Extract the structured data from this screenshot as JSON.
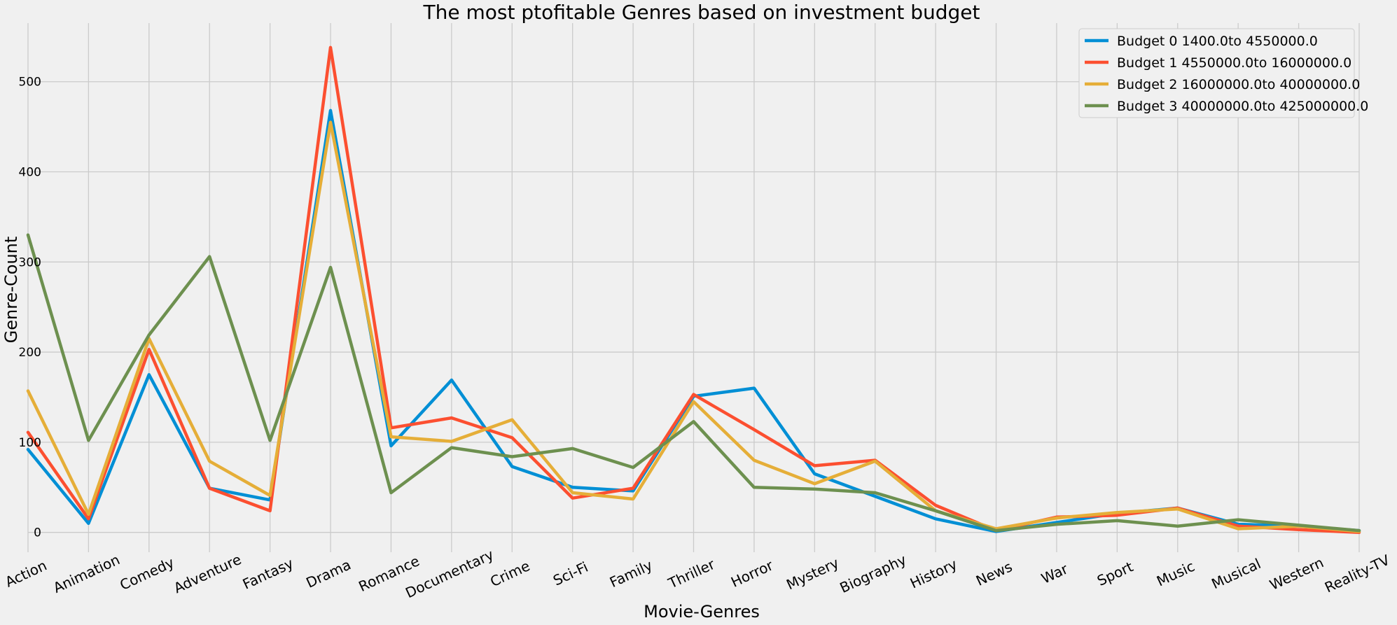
{
  "chart_data": {
    "type": "line",
    "title": "The most ptofitable Genres based on investment budget",
    "xlabel": "Movie-Genres",
    "ylabel": "Genre-Count",
    "categories": [
      "Action",
      "Animation",
      "Comedy",
      "Adventure",
      "Fantasy",
      "Drama",
      "Romance",
      "Documentary",
      "Crime",
      "Sci-Fi",
      "Family",
      "Thriller",
      "Horror",
      "Mystery",
      "Biography",
      "History",
      "News",
      "War",
      "Sport",
      "Music",
      "Musical",
      "Western",
      "Reality-TV"
    ],
    "yticks": [
      0,
      100,
      200,
      300,
      400,
      500
    ],
    "ylim": [
      -22,
      565
    ],
    "grid": true,
    "legend_position": "top-right",
    "series": [
      {
        "name": "Budget  0  1400.0to 4550000.0",
        "color": "#008fd5",
        "values": [
          92,
          10,
          175,
          49,
          36,
          468,
          96,
          169,
          73,
          50,
          46,
          151,
          160,
          65,
          40,
          15,
          1,
          11,
          21,
          27,
          9,
          7,
          2
        ]
      },
      {
        "name": "Budget  1  4550000.0to 16000000.0",
        "color": "#fc4f30",
        "values": [
          111,
          15,
          203,
          49,
          24,
          538,
          116,
          127,
          105,
          38,
          49,
          153,
          114,
          74,
          80,
          30,
          2,
          17,
          19,
          27,
          7,
          3,
          0
        ]
      },
      {
        "name": "Budget  2  16000000.0to 40000000.0",
        "color": "#e5ae38",
        "values": [
          157,
          20,
          215,
          79,
          41,
          455,
          106,
          101,
          125,
          44,
          37,
          145,
          80,
          54,
          79,
          24,
          4,
          16,
          22,
          26,
          4,
          7,
          1
        ]
      },
      {
        "name": "Budget  3  40000000.0to 425000000.0",
        "color": "#6d904f",
        "values": [
          330,
          102,
          219,
          306,
          102,
          294,
          44,
          94,
          84,
          93,
          72,
          123,
          50,
          48,
          44,
          24,
          2,
          9,
          13,
          7,
          14,
          8,
          2
        ]
      }
    ]
  }
}
